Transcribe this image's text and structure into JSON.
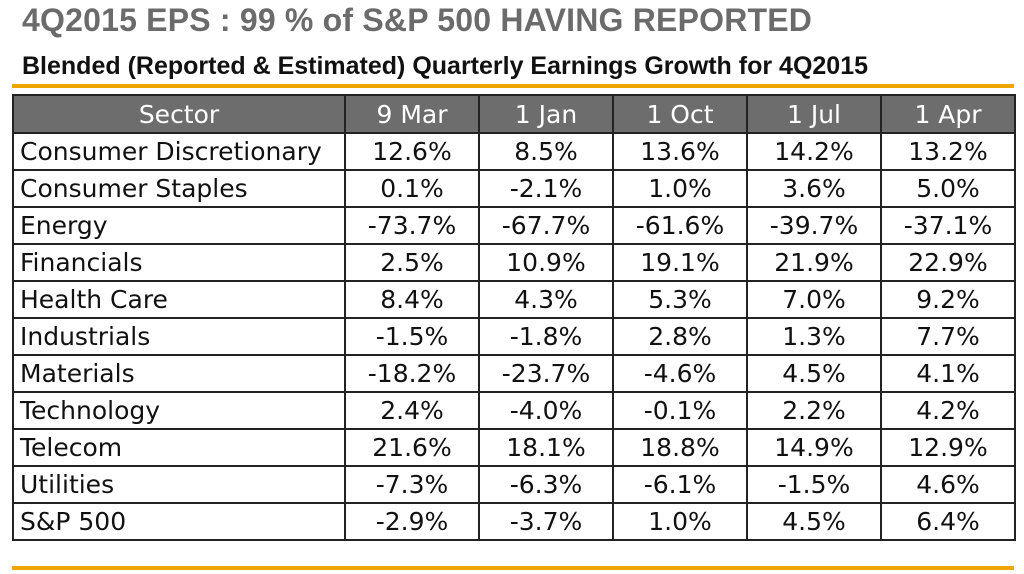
{
  "title": "4Q2015 EPS : 99 % of S&P 500 HAVING REPORTED",
  "subtitle": "Blended (Reported & Estimated) Quarterly Earnings Growth for 4Q2015",
  "colors": {
    "title": "#6b6b6b",
    "accent_rule": "#f0a500",
    "header_bg": "#6d6d6d",
    "header_text": "#ffffff"
  },
  "table": {
    "columns": [
      "Sector",
      "9 Mar",
      "1 Jan",
      "1 Oct",
      "1 Jul",
      "1 Apr"
    ],
    "rows": [
      [
        "Consumer Discretionary",
        "12.6%",
        "8.5%",
        "13.6%",
        "14.2%",
        "13.2%"
      ],
      [
        "Consumer Staples",
        "0.1%",
        "-2.1%",
        "1.0%",
        "3.6%",
        "5.0%"
      ],
      [
        "Energy",
        "-73.7%",
        "-67.7%",
        "-61.6%",
        "-39.7%",
        "-37.1%"
      ],
      [
        "Financials",
        "2.5%",
        "10.9%",
        "19.1%",
        "21.9%",
        "22.9%"
      ],
      [
        "Health Care",
        "8.4%",
        "4.3%",
        "5.3%",
        "7.0%",
        "9.2%"
      ],
      [
        "Industrials",
        "-1.5%",
        "-1.8%",
        "2.8%",
        "1.3%",
        "7.7%"
      ],
      [
        "Materials",
        "-18.2%",
        "-23.7%",
        "-4.6%",
        "4.5%",
        "4.1%"
      ],
      [
        "Technology",
        "2.4%",
        "-4.0%",
        "-0.1%",
        "2.2%",
        "4.2%"
      ],
      [
        "Telecom",
        "21.6%",
        "18.1%",
        "18.8%",
        "14.9%",
        "12.9%"
      ],
      [
        "Utilities",
        "-7.3%",
        "-6.3%",
        "-6.1%",
        "-1.5%",
        "4.6%"
      ],
      [
        "S&P 500",
        "-2.9%",
        "-3.7%",
        "1.0%",
        "4.5%",
        "6.4%"
      ]
    ]
  }
}
